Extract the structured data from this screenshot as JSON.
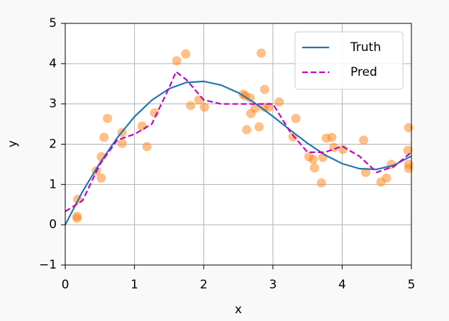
{
  "chart_data": {
    "type": "line",
    "x_label": "x",
    "y_label": "y",
    "xlim": [
      0,
      5
    ],
    "ylim": [
      -1,
      5
    ],
    "xticks": [
      0,
      1,
      2,
      3,
      4,
      5
    ],
    "yticks": [
      {
        "value": -1,
        "label": "−1"
      },
      0,
      1,
      2,
      3,
      4,
      5
    ],
    "grid": true,
    "legend": "upper right",
    "series": [
      {
        "name": "Truth",
        "color": "#1f77b4",
        "dash": false,
        "x": [
          0,
          0.25,
          0.5,
          0.75,
          1,
          1.25,
          1.5,
          1.75,
          2,
          2.25,
          2.5,
          2.75,
          3,
          3.25,
          3.5,
          3.75,
          4,
          4.25,
          4.5,
          4.75,
          5
        ],
        "values": [
          0,
          0.825,
          1.533,
          2.158,
          2.683,
          3.094,
          3.378,
          3.533,
          3.56,
          3.469,
          3.278,
          3.01,
          2.69,
          2.351,
          2.023,
          1.736,
          1.518,
          1.392,
          1.376,
          1.48,
          1.706
        ]
      },
      {
        "name": "Pred",
        "color": "#bf00bf",
        "dash": true,
        "x": [
          0,
          0.25,
          0.5,
          0.75,
          1,
          1.25,
          1.5,
          1.6,
          1.75,
          2,
          2.25,
          2.5,
          2.75,
          3,
          3.25,
          3.5,
          3.75,
          4,
          4.25,
          4.5,
          4.75,
          5
        ],
        "values": [
          0.33,
          0.6,
          1.5,
          2.1,
          2.25,
          2.5,
          3.4,
          3.8,
          3.6,
          3.1,
          3.0,
          3.0,
          3.0,
          3.0,
          2.3,
          1.8,
          1.8,
          1.95,
          1.7,
          1.3,
          1.45,
          1.8
        ]
      }
    ],
    "points": {
      "color": "#ff7f0e",
      "x": [
        0.17,
        0.17,
        0.18,
        0.45,
        0.52,
        0.52,
        0.56,
        0.61,
        0.82,
        0.82,
        1.11,
        1.18,
        1.29,
        1.61,
        1.74,
        1.81,
        1.93,
        2.01,
        2.57,
        2.6,
        2.62,
        2.67,
        2.68,
        2.74,
        2.8,
        2.83,
        2.87,
        2.88,
        2.94,
        3.09,
        3.29,
        3.33,
        3.52,
        3.58,
        3.6,
        3.72,
        3.7,
        3.77,
        3.85,
        3.88,
        4.01,
        4.31,
        4.34,
        4.56,
        4.64,
        4.71,
        4.95,
        4.96,
        4.96,
        4.96
      ],
      "values": [
        0.21,
        0.16,
        0.63,
        1.34,
        1.16,
        1.69,
        2.17,
        2.64,
        2.29,
        2.02,
        2.45,
        1.94,
        2.78,
        4.07,
        4.24,
        2.96,
        3.1,
        2.92,
        3.24,
        3.2,
        2.36,
        3.15,
        2.76,
        2.89,
        2.43,
        4.26,
        2.92,
        3.36,
        2.92,
        3.05,
        2.18,
        2.64,
        1.69,
        1.62,
        1.41,
        1.67,
        1.04,
        2.15,
        2.17,
        1.92,
        1.87,
        2.1,
        1.3,
        1.06,
        1.16,
        1.5,
        1.85,
        2.41,
        1.5,
        1.4
      ]
    }
  }
}
